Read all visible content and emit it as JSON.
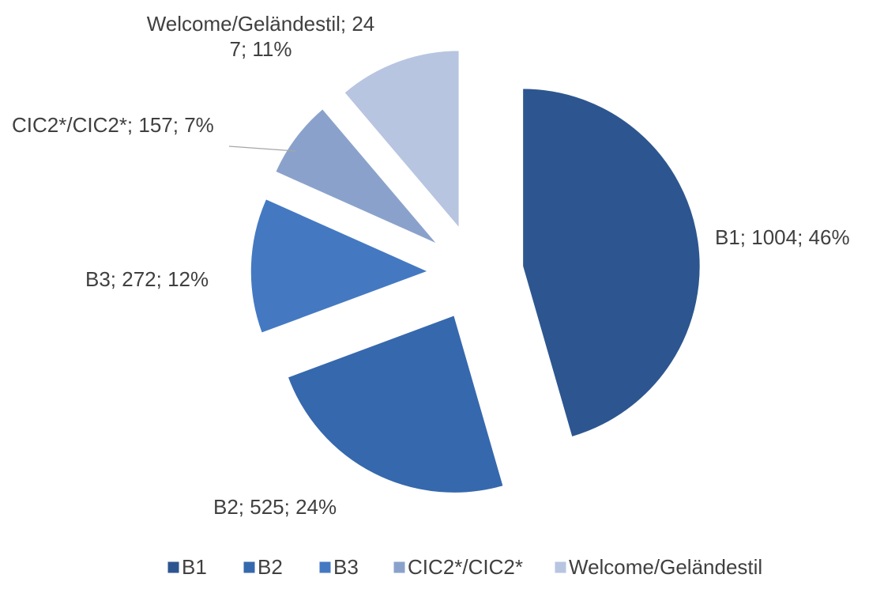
{
  "chart_data": {
    "type": "pie",
    "categories": [
      "B1",
      "B2",
      "B3",
      "CIC2*/CIC2*",
      "Welcome/Geländestil"
    ],
    "values": [
      1004,
      525,
      272,
      157,
      247
    ],
    "value_labels": [
      "B1; 1004; 46%",
      "B2; 525; 24%",
      "B3; 272; 12%",
      "CIC2*/CIC2*; 157; 7%",
      "Welcome/Geländestil; 247; 11%"
    ],
    "colors": [
      "#2d5690",
      "#3668ad",
      "#4479c2",
      "#8aa2cb",
      "#b7c5e1"
    ],
    "legend": "bottom"
  }
}
